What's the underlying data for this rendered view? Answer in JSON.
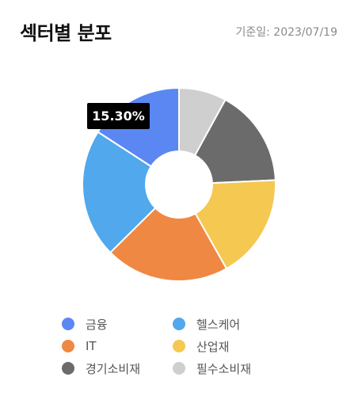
{
  "header": {
    "title": "섹터별 분포",
    "as_of": "기준일: 2023/07/19"
  },
  "chart_data": {
    "type": "pie",
    "donut": true,
    "categories": [
      "금융",
      "헬스케어",
      "IT",
      "산업재",
      "경기소비재",
      "필수소비재"
    ],
    "series": [
      {
        "values": [
          15.3,
          20.85,
          20.05,
          16.95,
          15.75,
          7.7
        ]
      }
    ],
    "colors": [
      "#5b87f3",
      "#51a8ec",
      "#ef8843",
      "#f5c851",
      "#6b6b6b",
      "#cfcfcf"
    ],
    "slice_order_clockwise_from_top": [
      "필수소비재",
      "경기소비재",
      "산업재",
      "IT",
      "헬스케어",
      "금융"
    ],
    "tooltip": {
      "series": "금융",
      "text": "15.30%"
    },
    "legend_position": "bottom"
  }
}
